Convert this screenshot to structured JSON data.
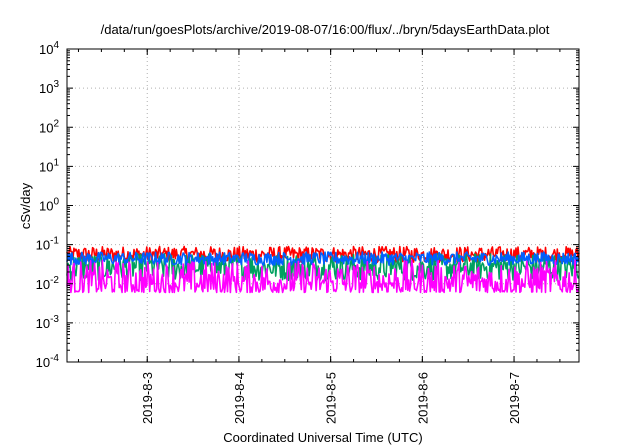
{
  "chart_data": {
    "type": "line",
    "title": "/data/run/goesPlots/archive/2019-08-07/16:00/flux/../bryn/5daysEarthData.plot",
    "xlabel": "Coordinated Universal Time (UTC)",
    "ylabel": "cSv/day",
    "y_scale": "log",
    "ylim": [
      0.0001,
      10000
    ],
    "y_ticks": [
      {
        "base": "10",
        "exp": "-4"
      },
      {
        "base": "10",
        "exp": "-3"
      },
      {
        "base": "10",
        "exp": "-2"
      },
      {
        "base": "10",
        "exp": "-1"
      },
      {
        "base": "10",
        "exp": "0"
      },
      {
        "base": "10",
        "exp": "1"
      },
      {
        "base": "10",
        "exp": "2"
      },
      {
        "base": "10",
        "exp": "3"
      },
      {
        "base": "10",
        "exp": "4"
      }
    ],
    "xlim": [
      "2019-08-02T03:00",
      "2019-08-07T17:00"
    ],
    "x_ticks": [
      {
        "label": "2019-8-3",
        "date": "2019-08-03"
      },
      {
        "label": "2019-8-4",
        "date": "2019-08-04"
      },
      {
        "label": "2019-8-5",
        "date": "2019-08-05"
      },
      {
        "label": "2019-8-6",
        "date": "2019-08-06"
      },
      {
        "label": "2019-8-7",
        "date": "2019-08-07"
      }
    ],
    "grid": true,
    "series": [
      {
        "color": "#ff0000",
        "typical_low": 0.035,
        "typical_high": 0.09
      },
      {
        "color": "#00a060",
        "typical_low": 0.012,
        "typical_high": 0.06
      },
      {
        "color": "#0060ff",
        "typical_low": 0.03,
        "typical_high": 0.065
      },
      {
        "color": "#ff00ff",
        "typical_low": 0.006,
        "typical_high": 0.04
      }
    ]
  }
}
